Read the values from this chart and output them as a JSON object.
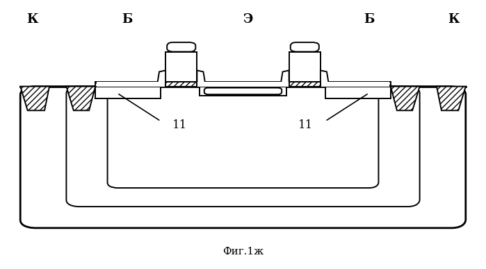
{
  "title": "Фиг.1ж",
  "label_K1": "К",
  "label_K2": "К",
  "label_B1": "Б",
  "label_B2": "Б",
  "label_E": "Э",
  "label_11a": "11",
  "label_11b": "11",
  "bg_color": "#ffffff",
  "line_color": "#000000",
  "lw": 1.4,
  "lw_thick": 2.0
}
